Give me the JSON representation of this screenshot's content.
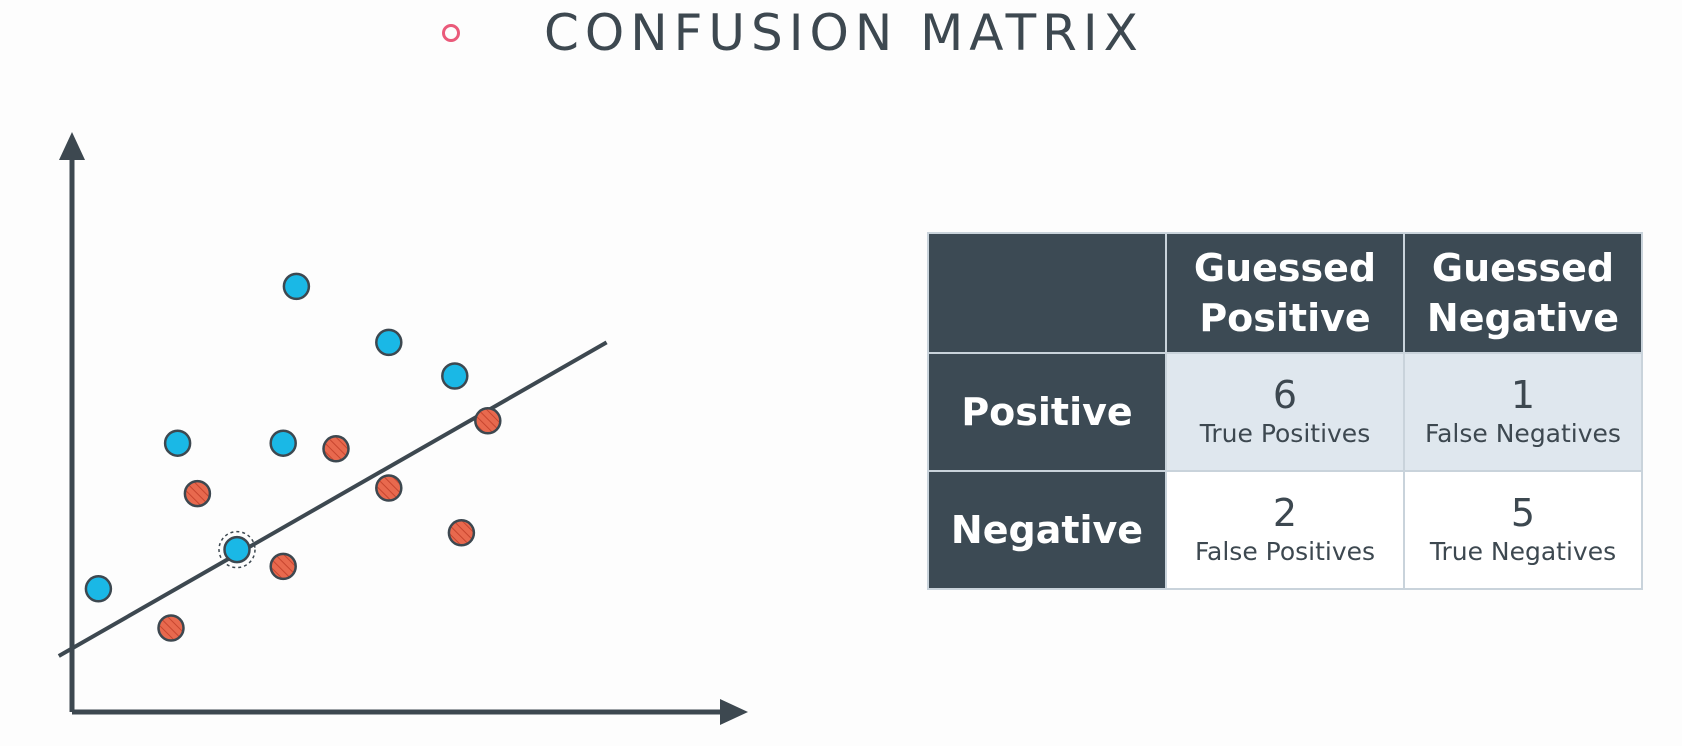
{
  "title": "CONFUSION MATRIX",
  "colors": {
    "accent_bullet": "#ea5a7a",
    "axis": "#3d4850",
    "positive_point": "#1ab8e6",
    "negative_point": "#e8694e",
    "matrix_header": "#3c4a54",
    "matrix_cell_light": "#dfe7ee",
    "matrix_cell_white": "#ffffff"
  },
  "matrix": {
    "corner": "",
    "col_headers": [
      [
        "Guessed",
        "Positive"
      ],
      [
        "Guessed",
        "Negative"
      ]
    ],
    "rows": [
      {
        "label": "Positive",
        "cells": [
          {
            "value": "6",
            "label": "True Positives"
          },
          {
            "value": "1",
            "label": "False Negatives"
          }
        ]
      },
      {
        "label": "Negative",
        "cells": [
          {
            "value": "2",
            "label": "False Positives"
          },
          {
            "value": "5",
            "label": "True Negatives"
          }
        ]
      }
    ]
  },
  "chart_data": {
    "type": "scatter",
    "title": "",
    "xlabel": "",
    "ylabel": "",
    "grid": false,
    "series": [
      {
        "points": [
          [
            4,
            22
          ],
          [
            16,
            48
          ],
          [
            34,
            76
          ],
          [
            32,
            48
          ],
          [
            48,
            66
          ],
          [
            58,
            60
          ],
          [
            25,
            29
          ]
        ]
      },
      {
        "points": [
          [
            15,
            15
          ],
          [
            19,
            39
          ],
          [
            40,
            47
          ],
          [
            48,
            40
          ],
          [
            59,
            32
          ],
          [
            32,
            26
          ],
          [
            63,
            52
          ]
        ]
      }
    ],
    "decision_line": [
      [
        -2,
        10
      ],
      [
        81,
        66
      ]
    ],
    "selected_point": [
      25,
      29
    ]
  }
}
